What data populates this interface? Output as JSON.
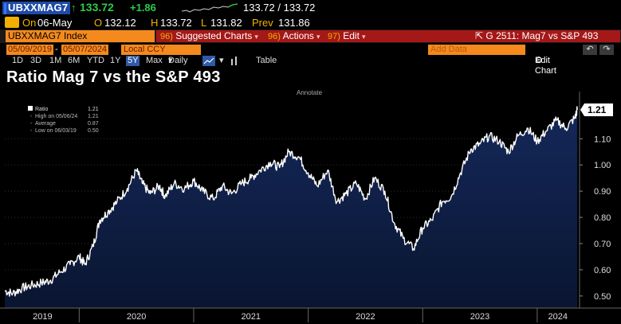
{
  "quote": {
    "ticker": "UBXXMAG7",
    "arrow": "↑",
    "last": "133.72",
    "change": "+1.86",
    "bid_ask": "133.72 / 133.72"
  },
  "info": {
    "on_label": "On",
    "on_date": "06-May",
    "open_label": "O",
    "open": "132.12",
    "high_label": "H",
    "high": "133.72",
    "low_label": "L",
    "low": "131.82",
    "prev_label": "Prev",
    "prev": "131.86"
  },
  "toolbar": {
    "index_name": "UBXXMAG7 Index",
    "suggested": {
      "num": "96)",
      "label": "Suggested Charts"
    },
    "actions": {
      "num": "96)",
      "label": "Actions"
    },
    "edit": {
      "num": "97)",
      "label": "Edit"
    },
    "chart_id": "G 2511: Mag7 vs S&P 493"
  },
  "range": {
    "start": "05/09/2019",
    "end": "05/07/2024",
    "sep": "-",
    "currency": "Local CCY",
    "add_data": "Add Data",
    "undo": "↶",
    "redo": "↷"
  },
  "periods": {
    "items": [
      "1D",
      "3D",
      "1M",
      "6M",
      "YTD",
      "1Y",
      "5Y",
      "Max"
    ],
    "selected": "5Y",
    "frequency": "Daily",
    "table": "Table",
    "edit_chart": "Edit Chart"
  },
  "title": "Ratio Mag 7 vs the S&P 493",
  "chart_data": {
    "type": "area",
    "title": "Ratio Mag 7 vs the S&P 493",
    "annotate_label": "Annotate",
    "legend": [
      {
        "label": "Ratio",
        "value": "1.21"
      },
      {
        "label": "High on 05/06/24",
        "value": "1.21"
      },
      {
        "label": "Average",
        "value": "0.87"
      },
      {
        "label": "Low on 06/03/19",
        "value": "0.50"
      }
    ],
    "last_value_label": "1.21",
    "ylim": [
      0.46,
      1.28
    ],
    "yticks": [
      0.5,
      0.6,
      0.7,
      0.8,
      0.9,
      1.0,
      1.1
    ],
    "ytick_labels": [
      "0.50",
      "0.60",
      "0.70",
      "0.80",
      "0.90",
      "1.00",
      "1.10"
    ],
    "xlim": [
      2019.35,
      2024.37
    ],
    "xtick_labels": [
      "2019",
      "2020",
      "2021",
      "2022",
      "2023",
      "2024"
    ],
    "xtick_centers": [
      2019.68,
      2020.5,
      2021.5,
      2022.5,
      2023.5,
      2024.18
    ],
    "xtick_boundaries": [
      2020.0,
      2021.0,
      2022.0,
      2023.0,
      2024.0
    ],
    "series_name": "Ratio",
    "x": [
      2019.35,
      2019.42,
      2019.5,
      2019.58,
      2019.67,
      2019.75,
      2019.83,
      2019.92,
      2020.0,
      2020.05,
      2020.12,
      2020.18,
      2020.25,
      2020.33,
      2020.42,
      2020.5,
      2020.55,
      2020.62,
      2020.7,
      2020.75,
      2020.83,
      2020.92,
      2021.0,
      2021.08,
      2021.17,
      2021.25,
      2021.33,
      2021.42,
      2021.5,
      2021.58,
      2021.67,
      2021.75,
      2021.83,
      2021.92,
      2022.0,
      2022.08,
      2022.17,
      2022.25,
      2022.33,
      2022.42,
      2022.5,
      2022.58,
      2022.67,
      2022.75,
      2022.83,
      2022.92,
      2023.0,
      2023.08,
      2023.17,
      2023.25,
      2023.33,
      2023.42,
      2023.5,
      2023.58,
      2023.67,
      2023.75,
      2023.83,
      2023.92,
      2024.0,
      2024.08,
      2024.17,
      2024.25,
      2024.33,
      2024.35
    ],
    "values": [
      0.52,
      0.51,
      0.53,
      0.54,
      0.55,
      0.56,
      0.59,
      0.62,
      0.65,
      0.62,
      0.69,
      0.79,
      0.82,
      0.86,
      0.91,
      0.98,
      0.93,
      0.89,
      0.92,
      0.88,
      0.93,
      0.91,
      0.94,
      0.9,
      0.87,
      0.92,
      0.89,
      0.93,
      0.95,
      0.98,
      1.01,
      0.99,
      1.05,
      1.03,
      0.97,
      0.92,
      0.98,
      0.86,
      0.89,
      0.93,
      0.87,
      0.95,
      0.9,
      0.78,
      0.72,
      0.68,
      0.76,
      0.79,
      0.86,
      0.88,
      0.97,
      1.06,
      1.08,
      1.11,
      1.09,
      1.05,
      1.11,
      1.14,
      1.09,
      1.13,
      1.17,
      1.14,
      1.18,
      1.21
    ]
  }
}
